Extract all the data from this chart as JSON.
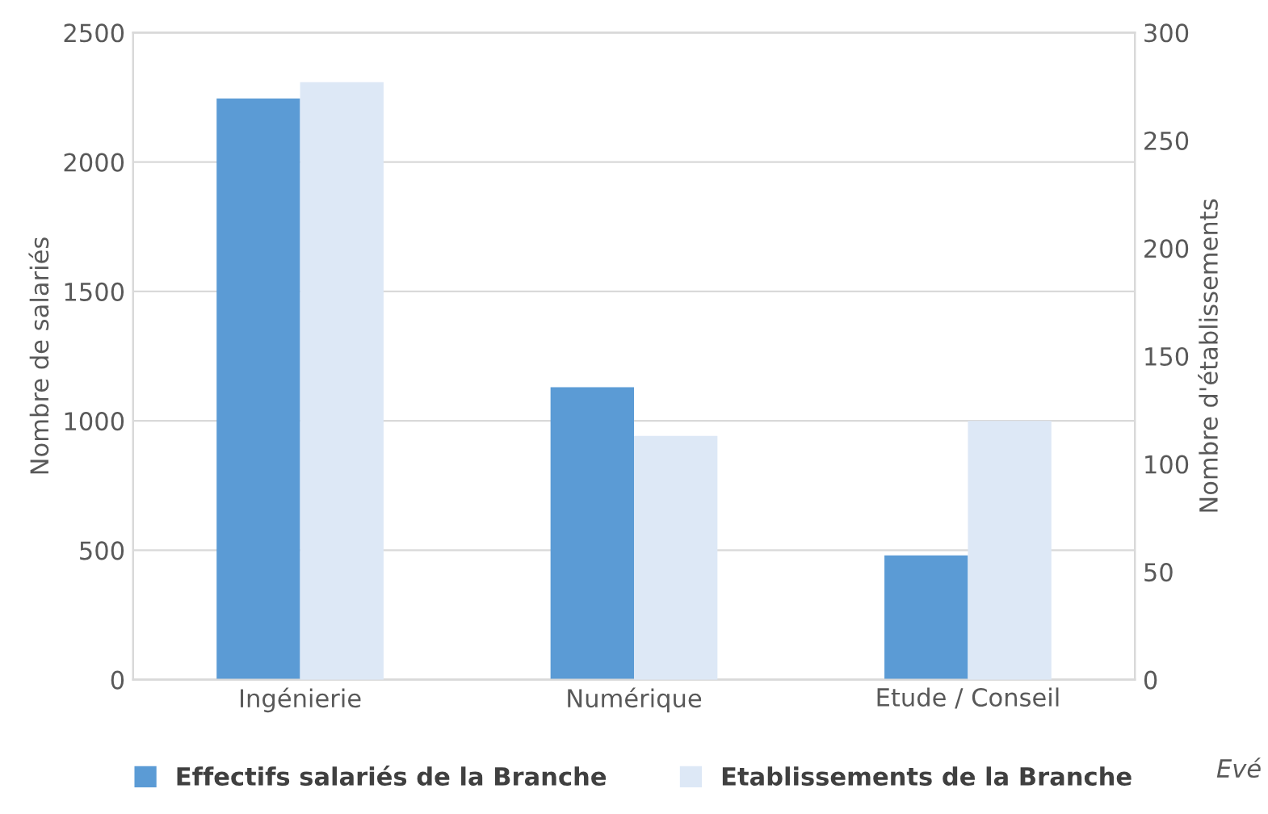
{
  "chart_data": {
    "type": "bar",
    "categories": [
      "Ingénierie",
      "Numérique",
      "Etude / Conseil"
    ],
    "series": [
      {
        "name": "Effectifs salariés de la Branche",
        "color": "#5b9bd5",
        "values": [
          2245,
          1130,
          480
        ]
      },
      {
        "name": "Etablissements de la Branche",
        "color": "#dde8f6",
        "values": [
          277,
          113,
          120
        ],
        "axis": "y2"
      }
    ],
    "ylabel": "Nombre de salariés",
    "y2label": "Nombre d'établissements",
    "ylim": [
      0,
      2500
    ],
    "yticks": [
      0,
      500,
      1000,
      1500,
      2000,
      2500
    ],
    "y2lim": [
      0,
      300
    ],
    "y2ticks": [
      0,
      50,
      100,
      150,
      200,
      250,
      300
    ],
    "grid": "y",
    "legend": "bottom",
    "annotations": [
      "Evé"
    ]
  }
}
